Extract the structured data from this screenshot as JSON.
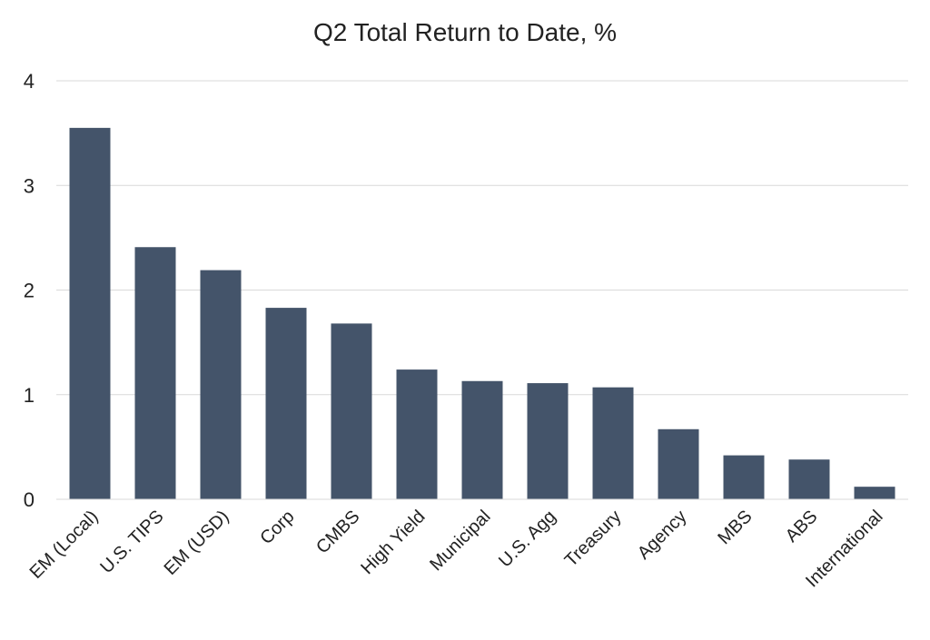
{
  "chart_data": {
    "type": "bar",
    "title": "Q2 Total Return to Date, %",
    "xlabel": "",
    "ylabel": "",
    "categories": [
      "EM (Local)",
      "U.S. TIPS",
      "EM (USD)",
      "Corp",
      "CMBS",
      "High Yield",
      "Municipal",
      "U.S. Agg",
      "Treasury",
      "Agency",
      "MBS",
      "ABS",
      "International"
    ],
    "values": [
      3.55,
      2.41,
      2.19,
      1.83,
      1.68,
      1.24,
      1.13,
      1.11,
      1.07,
      0.67,
      0.42,
      0.38,
      0.12
    ],
    "ylim": [
      0,
      4
    ],
    "yticks": [
      0,
      1,
      2,
      3,
      4
    ],
    "grid": true,
    "legend": "none",
    "colors": {
      "bar": "#44546a",
      "grid": "#d9d9d9",
      "text": "#222222"
    }
  }
}
